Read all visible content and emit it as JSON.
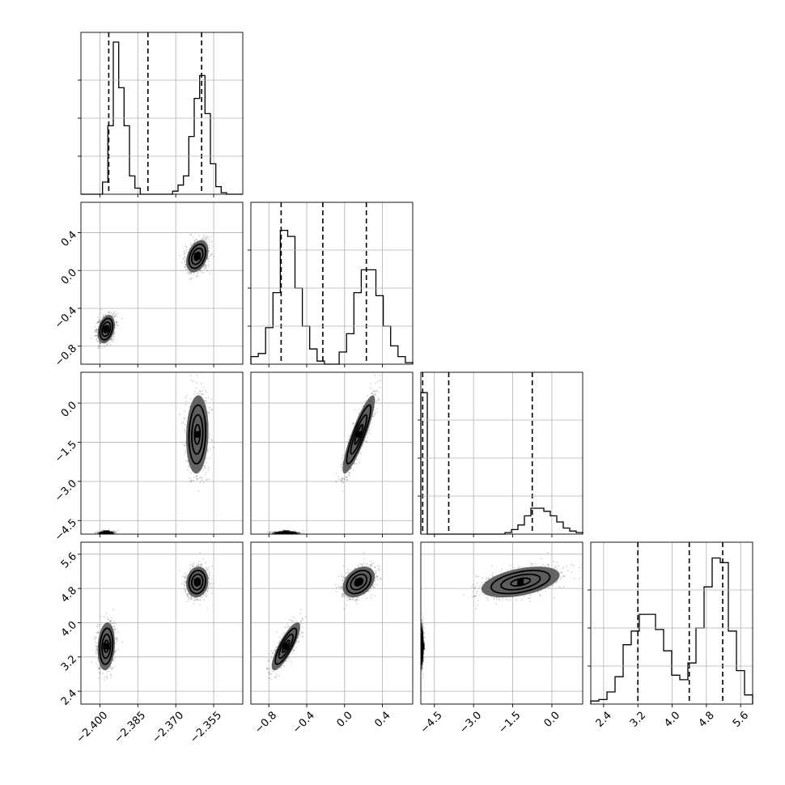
{
  "chart_data": {
    "type": "corner",
    "title": "",
    "grid": true,
    "parameters": [
      {
        "range": [
          -2.4075,
          -2.3435
        ],
        "ticks": [
          -2.4,
          -2.385,
          -2.37,
          -2.355
        ],
        "tick_labels": [
          "−2.400",
          "−2.385",
          "−2.370",
          "−2.355"
        ],
        "quantiles": [
          -2.3965,
          -2.381,
          -2.3598
        ]
      },
      {
        "range": [
          -0.99,
          0.72
        ],
        "ticks": [
          -0.8,
          -0.4,
          0.0,
          0.4
        ],
        "tick_labels": [
          "−0.8",
          "−0.4",
          "0.0",
          "0.4"
        ],
        "quantiles": [
          -0.67,
          -0.23,
          0.23
        ]
      },
      {
        "range": [
          -5.02,
          1.18
        ],
        "ticks": [
          -4.5,
          -3.0,
          -1.5,
          0.0
        ],
        "tick_labels": [
          "−4.5",
          "−3.0",
          "−1.5",
          "0.0"
        ],
        "quantiles": [
          -4.95,
          -3.95,
          -0.75
        ]
      },
      {
        "range": [
          2.1,
          5.88
        ],
        "ticks": [
          2.4,
          3.2,
          4.0,
          4.8,
          5.6
        ],
        "tick_labels": [
          "2.4",
          "3.2",
          "4.0",
          "4.8",
          "5.6"
        ],
        "quantiles": [
          3.2,
          4.4,
          5.18
        ]
      }
    ],
    "histograms": [
      [
        0,
        0,
        0,
        0,
        0.08,
        0.45,
        1.0,
        0.7,
        0.45,
        0.12,
        0.04,
        0,
        0,
        0,
        0,
        0,
        0,
        0.02,
        0.06,
        0.12,
        0.38,
        0.63,
        0.78,
        0.53,
        0.2,
        0.05,
        0.01,
        0,
        0,
        0
      ],
      [
        0.05,
        0.07,
        0.24,
        0.47,
        0.88,
        0.84,
        0.5,
        0.25,
        0.1,
        0.02,
        0,
        0,
        0.08,
        0.2,
        0.47,
        0.62,
        0.62,
        0.45,
        0.25,
        0.12,
        0.05,
        0.01
      ],
      [
        0.93,
        0,
        0,
        0,
        0,
        0,
        0,
        0,
        0,
        0,
        0,
        0,
        0,
        0.01,
        0.03,
        0.06,
        0.12,
        0.17,
        0.17,
        0.15,
        0.12,
        0.08,
        0.04,
        0.02,
        0.01
      ],
      [
        0.02,
        0.03,
        0.08,
        0.18,
        0.39,
        0.48,
        0.59,
        0.59,
        0.49,
        0.35,
        0.19,
        0.16,
        0.27,
        0.5,
        0.77,
        0.96,
        0.93,
        0.48,
        0.22,
        0.06
      ]
    ],
    "modes": [
      {
        "weight": 0.5,
        "mean": [
          -2.3975,
          -0.62,
          -5.0,
          3.45
        ],
        "sd": [
          0.0017,
          0.075,
          0.04,
          0.28
        ],
        "corr": [
          [
            1,
            0.3,
            0,
            0.15
          ],
          [
            0.3,
            1,
            0.05,
            0.82
          ],
          [
            0,
            0.05,
            1,
            0.05
          ],
          [
            0.15,
            0.82,
            0.05,
            1
          ]
        ]
      },
      {
        "weight": 0.5,
        "mean": [
          -2.3615,
          0.15,
          -1.2,
          4.95
        ],
        "sd": [
          0.0022,
          0.085,
          0.75,
          0.18
        ],
        "corr": [
          [
            1,
            0.35,
            0.1,
            0.1
          ],
          [
            0.35,
            1,
            0.88,
            0.35
          ],
          [
            0.1,
            0.88,
            1,
            0.45
          ],
          [
            0.1,
            0.35,
            0.45,
            1
          ]
        ]
      }
    ]
  }
}
